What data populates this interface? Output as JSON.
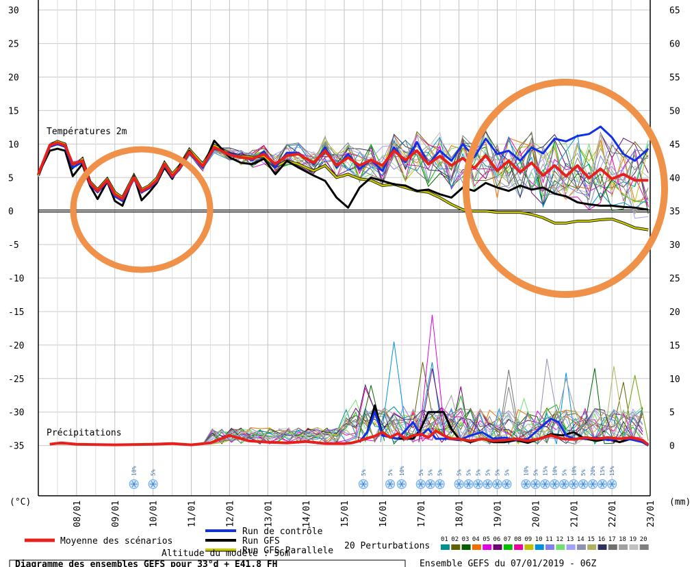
{
  "chart_data": {
    "type": "line",
    "title": "",
    "left_axis": {
      "unit": "(°C)",
      "ticks": [
        30,
        25,
        20,
        15,
        10,
        5,
        0,
        -5,
        -10,
        -15,
        -20,
        -25,
        -30,
        -35
      ],
      "ylim": [
        -42.5,
        31.5
      ]
    },
    "right_axis": {
      "unit": "(mm)",
      "ticks": [
        65,
        60,
        55,
        50,
        45,
        40,
        35,
        30,
        25,
        20,
        15,
        10,
        5,
        0
      ]
    },
    "x_ticks": [
      "08/01",
      "09/01",
      "10/01",
      "11/01",
      "12/01",
      "13/01",
      "14/01",
      "15/01",
      "16/01",
      "17/01",
      "18/01",
      "19/01",
      "20/01",
      "21/01",
      "22/01",
      "23/01"
    ],
    "x_range": [
      0,
      16
    ],
    "section_labels": {
      "temperature": "Températures 2m",
      "precipitation": "Précipitations"
    },
    "temperature_series": [
      {
        "name": "Moyenne des scénarios",
        "color": "#e8201c",
        "x": [
          0,
          0.3,
          0.5,
          0.7,
          0.9,
          1.15,
          1.35,
          1.55,
          1.8,
          2.0,
          2.2,
          2.5,
          2.7,
          2.9,
          3.1,
          3.3,
          3.5,
          3.7,
          3.95,
          4.3,
          4.6,
          5.0,
          5.3,
          5.6,
          5.9,
          6.2,
          6.5,
          6.8,
          7.2,
          7.5,
          7.8,
          8.1,
          8.4,
          8.7,
          9.0,
          9.3,
          9.6,
          9.9,
          10.2,
          10.5,
          10.8,
          11.1,
          11.4,
          11.7,
          12.0,
          12.3,
          12.6,
          12.9,
          13.2,
          13.5,
          13.8,
          14.1,
          14.4,
          14.7,
          15.0,
          15.3,
          15.6,
          15.95
        ],
        "y": [
          5.5,
          9.8,
          10.2,
          9.8,
          7,
          7.5,
          4.2,
          3.0,
          4.6,
          2.5,
          1.8,
          5.0,
          3.0,
          3.6,
          4.6,
          7.0,
          5.2,
          6.5,
          8.8,
          6.7,
          9.5,
          8.4,
          8.0,
          7.8,
          8.5,
          7.0,
          8.3,
          8.5,
          7.2,
          9.0,
          6.8,
          8.0,
          6.8,
          7.6,
          6.8,
          9.0,
          7.6,
          9.0,
          7.0,
          8.2,
          6.8,
          7.9,
          6.4,
          8.3,
          6.0,
          7.5,
          5.8,
          7.2,
          5.3,
          6.8,
          5.2,
          6.8,
          4.9,
          6.3,
          4.8,
          5.5,
          4.6,
          4.6
        ]
      },
      {
        "name": "Run de contrôle",
        "color": "#1030e8",
        "x": [
          0,
          0.3,
          0.5,
          0.7,
          0.9,
          1.15,
          1.35,
          1.55,
          1.8,
          2.0,
          2.2,
          2.5,
          2.7,
          2.9,
          3.1,
          3.3,
          3.5,
          3.7,
          3.95,
          4.3,
          4.6,
          5.0,
          5.3,
          5.6,
          5.9,
          6.2,
          6.5,
          6.8,
          7.2,
          7.5,
          7.8,
          8.1,
          8.4,
          8.7,
          9.0,
          9.3,
          9.6,
          9.9,
          10.2,
          10.5,
          10.8,
          11.1,
          11.4,
          11.7,
          12.0,
          12.3,
          12.6,
          12.9,
          13.2,
          13.5,
          13.8,
          14.1,
          14.4,
          14.7,
          15.0,
          15.3,
          15.6,
          15.95
        ],
        "y": [
          5.5,
          9.6,
          10.0,
          9.6,
          6.5,
          7.3,
          4.0,
          2.8,
          4.4,
          2.2,
          1.5,
          4.8,
          2.8,
          3.4,
          4.4,
          6.8,
          5.0,
          6.3,
          8.6,
          6.5,
          9.3,
          8.6,
          8.1,
          7.6,
          8.9,
          6.5,
          8.7,
          8.7,
          7.0,
          9.5,
          6.5,
          8.5,
          6.3,
          7.6,
          6.0,
          9.5,
          7.3,
          10.3,
          7.0,
          9.0,
          7.5,
          10.0,
          8.0,
          10.8,
          8.5,
          9.0,
          7.5,
          9.5,
          8.6,
          10.8,
          10.4,
          11.2,
          11.5,
          12.6,
          11.0,
          8.5,
          7.5,
          9.3
        ]
      },
      {
        "name": "Run GFS",
        "color": "#000000",
        "x": [
          0,
          0.3,
          0.5,
          0.7,
          0.9,
          1.15,
          1.35,
          1.55,
          1.8,
          2.0,
          2.2,
          2.5,
          2.7,
          2.9,
          3.1,
          3.3,
          3.5,
          3.7,
          3.95,
          4.3,
          4.6,
          5.0,
          5.3,
          5.6,
          5.9,
          6.2,
          6.5,
          6.8,
          7.2,
          7.5,
          7.8,
          8.1,
          8.4,
          8.7,
          9.0,
          9.3,
          9.6,
          9.9,
          10.2,
          10.5,
          10.8,
          11.1,
          11.4,
          11.7,
          12.0,
          12.3,
          12.6,
          12.9,
          13.2,
          13.5,
          13.8,
          14.1,
          14.4,
          14.7,
          15.0,
          15.3,
          15.6,
          15.95
        ],
        "y": [
          5.5,
          9.0,
          9.3,
          9.0,
          5.2,
          7.0,
          3.8,
          1.8,
          4.4,
          1.5,
          0.8,
          5.2,
          1.6,
          2.8,
          4.2,
          6.5,
          4.8,
          6.8,
          9.0,
          6.5,
          10.5,
          8.0,
          7.2,
          7.0,
          7.8,
          5.5,
          7.5,
          6.5,
          5.3,
          4.5,
          2.0,
          0.5,
          3.5,
          5.0,
          4.5,
          4.0,
          3.8,
          3.0,
          3.2,
          2.5,
          2.0,
          3.5,
          3.0,
          4.2,
          3.5,
          3.0,
          3.8,
          3.2,
          3.5,
          2.6,
          2.2,
          1.3,
          1.0,
          0.8,
          0.8,
          0.6,
          0.5,
          0.2
        ]
      },
      {
        "name": "Run GFS Parallele",
        "color": "#c8c800",
        "x": [
          0,
          0.3,
          0.5,
          0.7,
          0.9,
          1.15,
          1.35,
          1.55,
          1.8,
          2.0,
          2.2,
          2.5,
          2.7,
          2.9,
          3.1,
          3.3,
          3.5,
          3.7,
          3.95,
          4.3,
          4.6,
          5.0,
          5.3,
          5.6,
          5.9,
          6.2,
          6.5,
          6.8,
          7.2,
          7.5,
          7.8,
          8.1,
          8.4,
          8.7,
          9.0,
          9.3,
          9.6,
          9.9,
          10.2,
          10.5,
          10.8,
          11.1,
          11.4,
          11.7,
          12.0,
          12.3,
          12.6,
          12.9,
          13.2,
          13.5,
          13.8,
          14.1,
          14.4,
          14.7,
          15.0,
          15.3,
          15.6,
          15.95
        ],
        "y": [
          5.3,
          9.8,
          10.4,
          10.0,
          6.5,
          7.8,
          4.4,
          3.2,
          4.8,
          2.8,
          2.0,
          5.3,
          3.2,
          3.8,
          4.9,
          7.2,
          5.5,
          6.8,
          9.2,
          7.0,
          9.8,
          8.6,
          8.2,
          8.0,
          8.2,
          6.6,
          7.5,
          7.0,
          6.0,
          6.8,
          5.0,
          5.5,
          4.8,
          4.6,
          3.8,
          4.0,
          3.5,
          3.0,
          2.8,
          2.0,
          1.0,
          0.2,
          0.0,
          0.0,
          -0.2,
          -0.2,
          -0.2,
          -0.5,
          -1.0,
          -1.8,
          -1.8,
          -1.5,
          -1.5,
          -1.3,
          -1.2,
          -1.8,
          -2.5,
          -2.8
        ]
      }
    ],
    "precipitation_series": [
      {
        "name": "Moyenne des scénarios",
        "x": [
          0.3,
          0.6,
          1.0,
          2.0,
          3.0,
          3.5,
          4.0,
          4.5,
          5.0,
          5.5,
          6.0,
          6.5,
          7.0,
          7.5,
          8.0,
          8.2,
          8.4,
          8.6,
          8.8,
          9.0,
          9.2,
          9.4,
          9.6,
          9.8,
          10.0,
          10.2,
          10.4,
          10.6,
          10.8,
          11.0,
          11.3,
          11.6,
          11.9,
          12.2,
          12.5,
          12.8,
          13.1,
          13.4,
          13.7,
          14.0,
          14.3,
          14.6,
          14.9,
          15.2,
          15.5,
          15.8,
          15.95
        ],
        "y": [
          -34.8,
          -34.6,
          -34.8,
          -34.9,
          -34.8,
          -34.7,
          -34.9,
          -34.6,
          -33.5,
          -34.3,
          -34.5,
          -34.6,
          -34.4,
          -34.7,
          -34.7,
          -34.6,
          -34.3,
          -33.9,
          -33.6,
          -33.0,
          -33.8,
          -33.2,
          -34.0,
          -33.5,
          -33.3,
          -33.8,
          -32.8,
          -33.5,
          -34.0,
          -34.0,
          -34.3,
          -34.0,
          -34.3,
          -34.2,
          -34.0,
          -34.3,
          -34.0,
          -33.5,
          -34.0,
          -34.1,
          -33.8,
          -34.0,
          -33.8,
          -34.0,
          -33.8,
          -34.2,
          -34.9
        ]
      },
      {
        "name": "Run de contrôle",
        "x": [
          8.4,
          8.6,
          8.8,
          9.0,
          9.4,
          9.8,
          10.0,
          10.2,
          10.4,
          10.7,
          11.0,
          11.3,
          11.6,
          11.9,
          12.2,
          12.5,
          12.8,
          13.1,
          13.4,
          13.6,
          13.8,
          14.0,
          14.3,
          14.6,
          14.9,
          15.2,
          15.5,
          15.8,
          15.95
        ],
        "y": [
          -34.5,
          -33.0,
          -30.0,
          -33.5,
          -34.0,
          -31.5,
          -33.5,
          -32.5,
          -34.0,
          -34.0,
          -34.2,
          -33.5,
          -33.0,
          -34.0,
          -33.8,
          -34.2,
          -34.0,
          -32.5,
          -31.0,
          -31.5,
          -33.5,
          -34.0,
          -34.0,
          -33.8,
          -34.2,
          -34.0,
          -34.1,
          -34.5,
          -35.0
        ]
      },
      {
        "name": "Run GFS",
        "x": [
          8.4,
          8.6,
          8.8,
          9.0,
          9.4,
          9.8,
          10.0,
          10.2,
          10.4,
          10.6,
          10.8,
          11.0,
          11.3,
          11.6,
          11.9,
          12.2,
          12.5,
          12.8,
          13.1,
          13.4,
          13.7,
          14.0,
          14.3,
          14.6,
          14.9,
          15.2,
          15.5,
          15.8,
          15.95
        ],
        "y": [
          -34.5,
          -33.0,
          -29.0,
          -33.5,
          -34.0,
          -34.0,
          -32.5,
          -30.0,
          -30.0,
          -30.0,
          -32.5,
          -34.0,
          -34.5,
          -34.0,
          -34.5,
          -34.5,
          -34.2,
          -34.6,
          -34.0,
          -33.3,
          -33.5,
          -33.0,
          -34.0,
          -34.3,
          -34.0,
          -34.5,
          -34.0,
          -34.5,
          -35.0
        ]
      }
    ],
    "snow_markers": [
      {
        "x": 2.5,
        "pct": "10%"
      },
      {
        "x": 3.0,
        "pct": "5%"
      },
      {
        "x": 8.5,
        "pct": "5%"
      },
      {
        "x": 9.2,
        "pct": "5%"
      },
      {
        "x": 9.5,
        "pct": "10%"
      },
      {
        "x": 10.0,
        "pct": "5%"
      },
      {
        "x": 10.25,
        "pct": "5%"
      },
      {
        "x": 10.5,
        "pct": "5%"
      },
      {
        "x": 11.0,
        "pct": "5%"
      },
      {
        "x": 11.25,
        "pct": "5%"
      },
      {
        "x": 11.5,
        "pct": "5%"
      },
      {
        "x": 11.75,
        "pct": "5%"
      },
      {
        "x": 12.0,
        "pct": "5%"
      },
      {
        "x": 12.25,
        "pct": "5%"
      },
      {
        "x": 12.75,
        "pct": "10%"
      },
      {
        "x": 13.0,
        "pct": "5%"
      },
      {
        "x": 13.25,
        "pct": "15%"
      },
      {
        "x": 13.5,
        "pct": "10%"
      },
      {
        "x": 13.75,
        "pct": "5%"
      },
      {
        "x": 14.0,
        "pct": "10%"
      },
      {
        "x": 14.25,
        "pct": "5%"
      },
      {
        "x": 14.5,
        "pct": "20%"
      },
      {
        "x": 14.75,
        "pct": "15%"
      },
      {
        "x": 15.0,
        "pct": "15%"
      }
    ],
    "legend": {
      "mean_label": "Moyenne des scénarios",
      "control_label": "Run de contrôle",
      "gfs_label": "Run GFS",
      "parallel_label": "Run GFS Parallele",
      "perturbations_label": "20 Perturbations",
      "perturbation_numbers": [
        "01",
        "02",
        "03",
        "04",
        "05",
        "06",
        "07",
        "08",
        "09",
        "10",
        "11",
        "12",
        "13",
        "14",
        "15",
        "16",
        "17",
        "18",
        "19",
        "20"
      ],
      "perturbation_colors": [
        "#009090",
        "#606000",
        "#006000",
        "#f07000",
        "#e000e0",
        "#700070",
        "#00c000",
        "#f000a0",
        "#c0c000",
        "#0090e0",
        "#8080f0",
        "#70e070",
        "#a0a0ff",
        "#9090b0",
        "#b0b060",
        "#303060",
        "#707070",
        "#a0a0a0",
        "#c0c0c0",
        "#808080"
      ],
      "altitude_label": "Altitude du modèle : 56m",
      "footer_left": "Diagramme des ensembles GEFS pour 33°d + E41.8 FH",
      "footer_right": "Ensemble GEFS du 07/01/2019 - 06Z"
    },
    "highlight_circles_color": "#f0914a"
  }
}
